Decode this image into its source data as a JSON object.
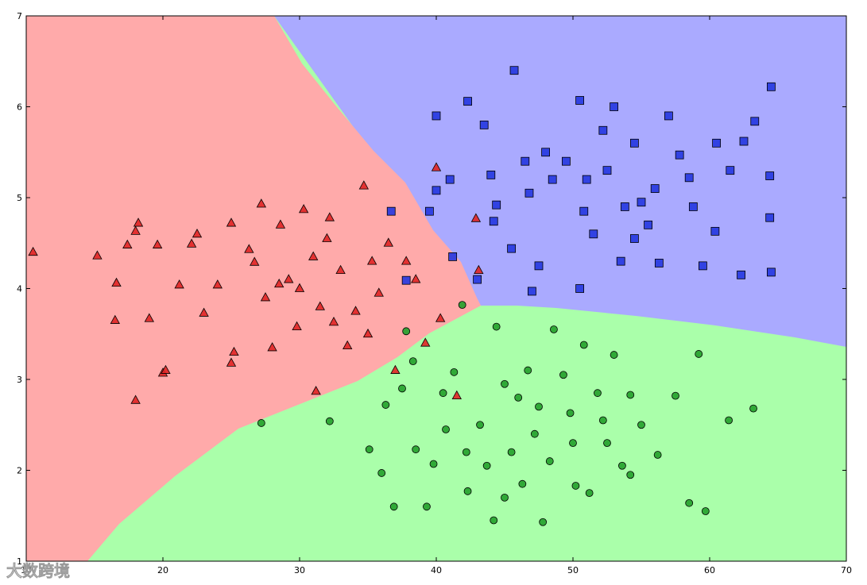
{
  "chart_data": {
    "type": "scatter",
    "xlim": [
      10,
      70
    ],
    "xticks": [
      10,
      20,
      30,
      40,
      50,
      60,
      70
    ],
    "ylim": [
      1,
      7
    ],
    "yticks": [
      1,
      2,
      3,
      4,
      5,
      6,
      7
    ],
    "watermark": "大数跨境",
    "series": [
      {
        "color": "#e02424",
        "marker": "triangle",
        "x": [
          10.5,
          15.2,
          16.5,
          16.6,
          17.4,
          18,
          18.2,
          18,
          19,
          19.6,
          20,
          20.2,
          21.2,
          22.1,
          22.5,
          23,
          24,
          25,
          25.2,
          25,
          26.3,
          26.7,
          27.2,
          27.5,
          28,
          28.6,
          29.2,
          29.8,
          30.3,
          31,
          31.5,
          32,
          32.5,
          33,
          33.5,
          34.1,
          34.7,
          35.3,
          35.8,
          36.5,
          37,
          37.8,
          38.5,
          39.2,
          40,
          40.3,
          41.5,
          43.1,
          42.9,
          31.2,
          35,
          30,
          28.5,
          32.2
        ],
        "values": [
          4.4,
          4.36,
          3.65,
          4.06,
          4.48,
          4.63,
          4.72,
          2.77,
          3.67,
          4.48,
          3.07,
          3.1,
          4.04,
          4.49,
          4.6,
          3.73,
          4.04,
          4.72,
          3.3,
          3.18,
          4.43,
          4.29,
          4.93,
          3.9,
          3.35,
          4.7,
          4.1,
          3.58,
          4.87,
          4.35,
          3.8,
          4.55,
          3.63,
          4.2,
          3.37,
          3.75,
          5.13,
          4.3,
          3.95,
          4.5,
          3.1,
          4.3,
          4.1,
          3.4,
          5.33,
          3.67,
          2.82,
          4.2,
          4.77,
          2.87,
          3.5,
          4.0,
          4.05,
          4.78
        ]
      },
      {
        "color": "#2436e0",
        "marker": "square",
        "x": [
          36.7,
          37.8,
          40,
          40,
          41.2,
          42.3,
          43.5,
          44.2,
          45.7,
          45.5,
          46.5,
          47.5,
          47,
          48.5,
          50.5,
          50.5,
          51.5,
          52.2,
          53,
          53.5,
          54.5,
          55,
          55.5,
          56,
          57,
          57.8,
          58.5,
          59.5,
          60.5,
          60.4,
          62.3,
          62.5,
          63.3,
          64.4,
          64.5,
          64.5,
          64.4,
          39.5,
          41,
          43,
          44.4,
          46.8,
          49.5,
          50.8,
          52.5,
          53.8,
          56.3,
          58.8,
          61.5,
          44,
          48,
          51,
          54.5
        ],
        "values": [
          4.85,
          4.09,
          5.9,
          5.08,
          4.35,
          6.06,
          5.8,
          4.74,
          6.4,
          4.44,
          5.4,
          4.25,
          3.97,
          5.2,
          6.07,
          4.0,
          4.6,
          5.74,
          6.0,
          4.3,
          5.6,
          4.95,
          4.7,
          5.1,
          5.9,
          5.47,
          5.22,
          4.25,
          5.6,
          4.63,
          4.15,
          5.62,
          5.84,
          5.24,
          6.22,
          4.18,
          4.78,
          4.85,
          5.2,
          4.1,
          4.92,
          5.05,
          5.4,
          4.85,
          5.3,
          4.9,
          4.28,
          4.9,
          5.3,
          5.25,
          5.5,
          5.2,
          4.55
        ]
      },
      {
        "color": "#22a02a",
        "marker": "circle",
        "x": [
          27.2,
          32.2,
          35.1,
          36,
          36.9,
          36.3,
          37.5,
          37.8,
          38.5,
          39.3,
          39.8,
          40.5,
          41.3,
          41.9,
          42.3,
          43.2,
          43.7,
          44.2,
          44.4,
          45,
          45.5,
          46,
          46.7,
          47.2,
          47.8,
          48.3,
          48.6,
          49.3,
          49.8,
          50.2,
          50.8,
          51.2,
          51.8,
          52.5,
          53,
          53.6,
          54.2,
          55,
          56.2,
          57.5,
          58.5,
          59.2,
          59.7,
          61.4,
          63.2,
          38.3,
          42.2,
          45,
          47.5,
          50,
          52.2,
          54.2,
          40.7,
          46.3
        ],
        "values": [
          2.52,
          2.54,
          2.23,
          1.97,
          1.6,
          2.72,
          2.9,
          3.53,
          2.23,
          1.6,
          2.07,
          2.85,
          3.08,
          3.82,
          1.77,
          2.5,
          2.05,
          1.45,
          3.58,
          1.7,
          2.2,
          2.8,
          3.1,
          2.4,
          1.43,
          2.1,
          3.55,
          3.05,
          2.63,
          1.83,
          3.38,
          1.75,
          2.85,
          2.3,
          3.27,
          2.05,
          2.83,
          2.5,
          2.17,
          2.82,
          1.64,
          3.28,
          1.55,
          2.55,
          2.68,
          3.2,
          2.2,
          2.95,
          2.7,
          2.3,
          2.55,
          1.95,
          2.45,
          1.85
        ]
      }
    ]
  }
}
